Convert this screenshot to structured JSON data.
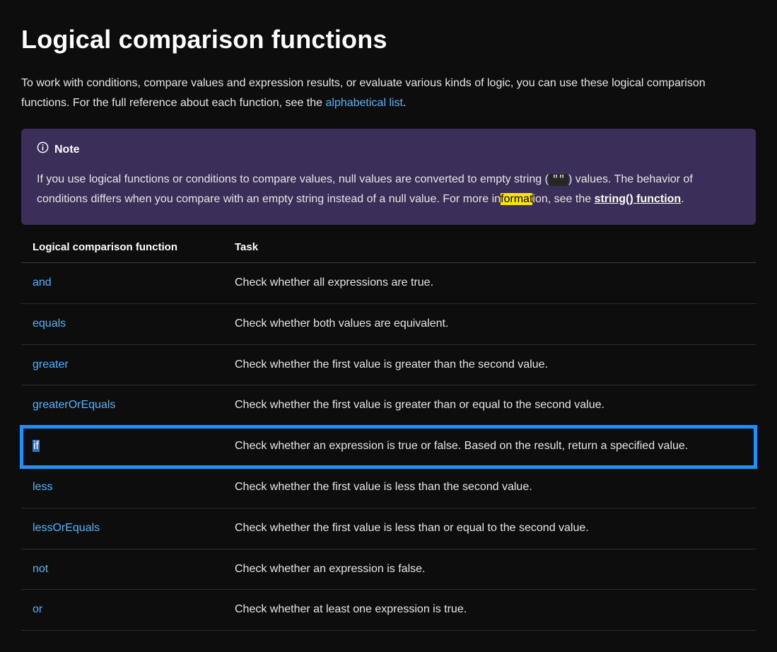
{
  "heading": "Logical comparison functions",
  "intro": {
    "text_a": "To work with conditions, compare values and expression results, or evaluate various kinds of logic, you can use these logical comparison functions. For the full reference about each function, see the ",
    "link": "alphabetical list",
    "text_b": "."
  },
  "note": {
    "label": "Note",
    "body_a": "If you use logical functions or conditions to compare values, null values are converted to empty string (",
    "code": "\"\"",
    "body_b": ") values. The behavior of conditions differs when you compare with an empty string instead of a null value. For more in",
    "highlight": "format",
    "body_c": "ion, see the ",
    "bold_link": "string() function",
    "body_d": "."
  },
  "table": {
    "header_fn": "Logical comparison function",
    "header_task": "Task",
    "rows": [
      {
        "fn": "and",
        "task": "Check whether all expressions are true.",
        "selected": false
      },
      {
        "fn": "equals",
        "task": "Check whether both values are equivalent.",
        "selected": false
      },
      {
        "fn": "greater",
        "task": "Check whether the first value is greater than the second value.",
        "selected": false
      },
      {
        "fn": "greaterOrEquals",
        "task": "Check whether the first value is greater than or equal to the second value.",
        "selected": false
      },
      {
        "fn": "if",
        "task": "Check whether an expression is true or false. Based on the result, return a specified value.",
        "selected": true
      },
      {
        "fn": "less",
        "task": "Check whether the first value is less than the second value.",
        "selected": false
      },
      {
        "fn": "lessOrEquals",
        "task": "Check whether the first value is less than or equal to the second value.",
        "selected": false
      },
      {
        "fn": "not",
        "task": "Check whether an expression is false.",
        "selected": false
      },
      {
        "fn": "or",
        "task": "Check whether at least one expression is true.",
        "selected": false
      }
    ]
  },
  "colors": {
    "background": "#0d0d0d",
    "text": "#e6e6e6",
    "heading": "#ffffff",
    "link": "#4db4ff",
    "note_bg": "#3b2e58",
    "code_bg": "#262626",
    "highlight_bg": "#ffe600",
    "selection_outline": "#1e90ff",
    "selection_text_bg": "#2f74c0",
    "row_border": "#2d2d2d"
  }
}
